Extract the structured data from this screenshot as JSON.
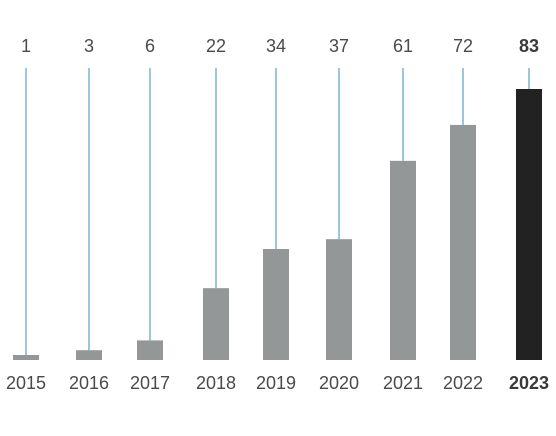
{
  "chart_data": {
    "type": "bar",
    "title": "",
    "xlabel": "",
    "ylabel": "",
    "categories": [
      "2015",
      "2016",
      "2017",
      "2018",
      "2019",
      "2020",
      "2021",
      "2022",
      "2023"
    ],
    "values": [
      1,
      3,
      6,
      22,
      34,
      37,
      61,
      72,
      83
    ],
    "value_labels": [
      "1",
      "3",
      "6",
      "22",
      "34",
      "37",
      "61",
      "72",
      "83"
    ],
    "highlight_index": 8,
    "ylim": [
      0,
      83
    ],
    "grid": false,
    "legend": "none",
    "colors": {
      "bar": "#949797",
      "highlight_bar": "#222222",
      "leader_line": "#9cc6dc",
      "text": "#4a4a4a"
    }
  }
}
